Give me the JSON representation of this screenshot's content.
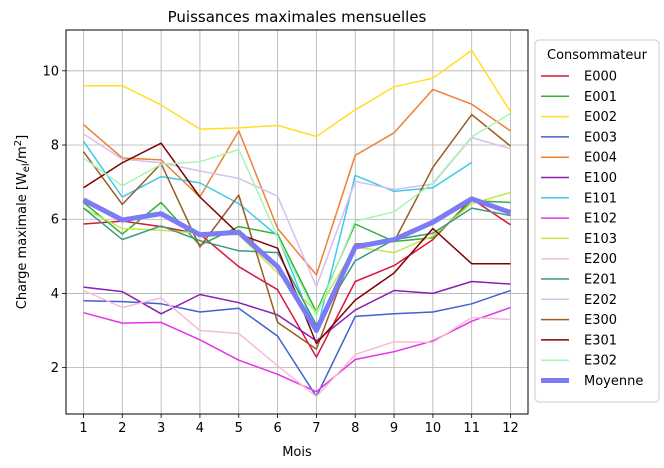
{
  "chart_data": {
    "type": "line",
    "title": "Puissances maximales mensuelles",
    "xlabel": "Mois",
    "ylabel": "Charge maximale [W",
    "ylabel_sub": "el",
    "ylabel_den": "/m",
    "ylabel_sup": "2",
    "ylabel_close": "]",
    "x": [
      1,
      2,
      3,
      4,
      5,
      6,
      7,
      8,
      9,
      10,
      11,
      12
    ],
    "x_ticks": [
      "1",
      "2",
      "3",
      "4",
      "5",
      "6",
      "7",
      "8",
      "9",
      "10",
      "11",
      "12"
    ],
    "xlim": [
      0.55,
      12.45
    ],
    "ylim": [
      0.75,
      11.1
    ],
    "y_ticks": [
      2,
      4,
      6,
      8,
      10
    ],
    "y_tick_labels": [
      "2",
      "4",
      "6",
      "8",
      "10"
    ],
    "grid": true,
    "legend": {
      "title": "Consommateur",
      "position": "right"
    },
    "series": [
      {
        "name": "E000",
        "color": "#dc143c",
        "width": 1.5,
        "values": [
          5.87,
          5.95,
          5.8,
          5.6,
          4.72,
          4.1,
          2.28,
          4.32,
          4.75,
          5.45,
          6.55,
          5.85
        ]
      },
      {
        "name": "E001",
        "color": "#32b432",
        "width": 1.5,
        "values": [
          6.45,
          5.6,
          6.45,
          5.3,
          5.8,
          5.6,
          3.5,
          5.87,
          5.4,
          5.5,
          6.5,
          6.45
        ]
      },
      {
        "name": "E002",
        "color": "#ffdf22",
        "width": 1.5,
        "values": [
          9.6,
          9.6,
          9.08,
          8.43,
          8.46,
          8.53,
          8.23,
          8.95,
          9.57,
          9.8,
          10.55,
          8.9
        ]
      },
      {
        "name": "E003",
        "color": "#4161cf",
        "width": 1.5,
        "values": [
          3.8,
          3.78,
          3.72,
          3.5,
          3.6,
          2.85,
          1.22,
          3.38,
          3.45,
          3.5,
          3.72,
          4.08
        ]
      },
      {
        "name": "E004",
        "color": "#ee8033",
        "width": 1.5,
        "values": [
          8.55,
          7.65,
          7.6,
          6.6,
          8.38,
          5.75,
          4.5,
          7.72,
          8.33,
          9.5,
          9.1,
          8.38
        ]
      },
      {
        "name": "E100",
        "color": "#8c1eb4",
        "width": 1.5,
        "values": [
          4.17,
          4.05,
          3.45,
          3.97,
          3.75,
          3.42,
          2.72,
          3.55,
          4.08,
          4.0,
          4.32,
          4.25
        ]
      },
      {
        "name": "E101",
        "color": "#3ccbea",
        "width": 1.5,
        "values": [
          8.1,
          6.6,
          7.15,
          6.98,
          6.42,
          5.55,
          2.95,
          7.18,
          6.75,
          6.85,
          7.53,
          null
        ]
      },
      {
        "name": "E102",
        "color": "#e733e7",
        "width": 1.5,
        "values": [
          3.48,
          3.2,
          3.22,
          2.75,
          2.2,
          1.82,
          1.35,
          2.22,
          2.43,
          2.72,
          3.25,
          3.62
        ]
      },
      {
        "name": "E103",
        "color": "#c5e74a",
        "width": 1.5,
        "values": [
          6.3,
          5.75,
          5.7,
          5.62,
          5.58,
          4.55,
          3.5,
          5.25,
          5.1,
          5.55,
          6.42,
          6.72
        ]
      },
      {
        "name": "E200",
        "color": "#f6bcd8",
        "width": 1.5,
        "values": [
          4.08,
          3.62,
          3.88,
          3.0,
          2.92,
          2.05,
          1.22,
          2.35,
          2.7,
          2.68,
          3.35,
          3.3
        ]
      },
      {
        "name": "E201",
        "color": "#3c9982",
        "width": 1.5,
        "values": [
          6.3,
          5.45,
          5.82,
          5.42,
          5.15,
          5.1,
          3.15,
          4.88,
          5.45,
          5.62,
          6.3,
          6.1
        ]
      },
      {
        "name": "E202",
        "color": "#d8bfee",
        "width": 1.5,
        "values": [
          8.3,
          7.62,
          7.52,
          7.3,
          7.1,
          6.62,
          4.18,
          7.02,
          6.8,
          6.95,
          8.2,
          7.9
        ]
      },
      {
        "name": "E300",
        "color": "#9b5c23",
        "width": 1.5,
        "values": [
          7.82,
          6.4,
          7.5,
          5.25,
          6.65,
          3.22,
          2.5,
          5.33,
          5.4,
          7.4,
          8.82,
          7.97
        ]
      },
      {
        "name": "E301",
        "color": "#800000",
        "width": 1.5,
        "values": [
          6.85,
          7.52,
          8.05,
          6.6,
          5.6,
          5.22,
          2.65,
          3.82,
          4.55,
          5.75,
          4.8,
          4.8
        ]
      },
      {
        "name": "E302",
        "color": "#a8f5b8",
        "width": 1.5,
        "values": [
          7.65,
          6.9,
          7.48,
          7.55,
          7.88,
          5.52,
          3.4,
          5.95,
          6.2,
          6.98,
          8.22,
          8.85
        ]
      },
      {
        "name": "Moyenne",
        "color": "#7b7bf3",
        "width": 5,
        "values": [
          6.52,
          5.98,
          6.15,
          5.58,
          5.65,
          4.72,
          3.0,
          5.25,
          5.45,
          5.92,
          6.55,
          6.18
        ]
      }
    ]
  }
}
